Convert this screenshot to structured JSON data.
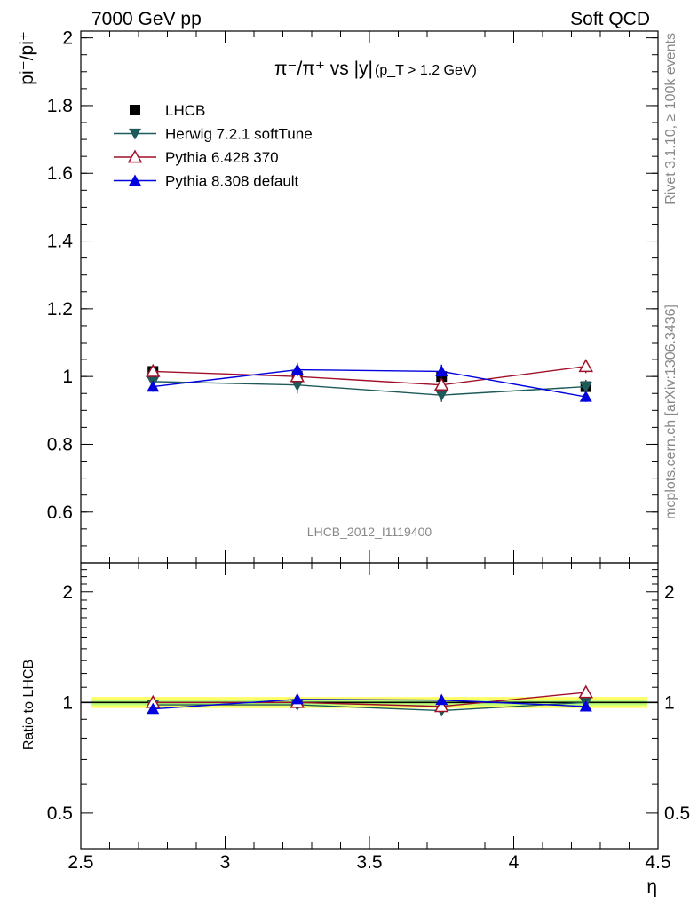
{
  "header": {
    "left": "7000 GeV pp",
    "right": "Soft QCD"
  },
  "side_labels": {
    "rivet": "Rivet 3.1.10, ≥ 100k events",
    "mcplots": "mcplots.cern.ch [arXiv:1306.3436]"
  },
  "chart_data": [
    {
      "type": "line",
      "title": {
        "main": "π⁻/π⁺ vs |y|",
        "cut": "(p_T > 1.2 GeV)"
      },
      "ylabel": "pi⁻/pi⁺",
      "xlim": [
        2.5,
        4.5
      ],
      "ylim": [
        0.45,
        2.02
      ],
      "yticks": [
        0.6,
        0.8,
        1,
        1.2,
        1.4,
        1.6,
        1.8,
        2
      ],
      "ytick_labels": [
        "0.6",
        "0.8",
        "1",
        "1.2",
        "1.4",
        "1.6",
        "1.8",
        "2"
      ],
      "watermark": "LHCB_2012_I1119400",
      "legend_position": "top-left",
      "x": [
        2.75,
        3.25,
        3.75,
        4.25
      ],
      "series": [
        {
          "name": "LHCB",
          "marker": "square-filled",
          "color": "#000000",
          "values": [
            1.015,
            1.0,
            1.0,
            0.97
          ],
          "err": [
            0.02,
            0.02,
            0.02,
            0.02
          ]
        },
        {
          "name": "Herwig 7.2.1 softTune",
          "marker": "triangle-down-filled",
          "color": "#1f5a5a",
          "values": [
            0.985,
            0.975,
            0.945,
            0.97
          ],
          "err": [
            0.018,
            0.025,
            0.02,
            0.02
          ]
        },
        {
          "name": "Pythia 6.428 370",
          "marker": "triangle-up-open",
          "color": "#a0102a",
          "values": [
            1.015,
            1.0,
            0.975,
            1.03
          ],
          "err": [
            0.015,
            0.02,
            0.02,
            0.02
          ]
        },
        {
          "name": "Pythia 8.308 default",
          "marker": "triangle-up-filled",
          "color": "#0000e0",
          "values": [
            0.97,
            1.02,
            1.015,
            0.94
          ],
          "err": [
            0.015,
            0.02,
            0.02,
            0.015
          ]
        }
      ]
    },
    {
      "type": "line",
      "ylabel": "Ratio to LHCB",
      "xlabel": "η",
      "xlim": [
        2.5,
        4.5
      ],
      "ylim": [
        0.4,
        2.4
      ],
      "yscale": "log",
      "xticks": [
        2.5,
        3,
        3.5,
        4,
        4.5
      ],
      "xtick_labels": [
        "2.5",
        "3",
        "3.5",
        "4",
        "4.5"
      ],
      "yticks": [
        0.5,
        1,
        2
      ],
      "ytick_labels": [
        "0.5",
        "1",
        "2"
      ],
      "reference_line": 1,
      "band_colors": {
        "inner": "#88ff88",
        "outer": "#ffff66"
      },
      "x": [
        2.75,
        3.25,
        3.75,
        4.25
      ],
      "series": [
        {
          "name": "Herwig 7.2.1 softTune",
          "marker": "triangle-down-filled",
          "color": "#1f5a5a",
          "values": [
            0.985,
            0.985,
            0.95,
            1.0
          ]
        },
        {
          "name": "Pythia 6.428 370",
          "marker": "triangle-up-open",
          "color": "#a0102a",
          "values": [
            1.0,
            1.0,
            0.975,
            1.065
          ]
        },
        {
          "name": "Pythia 8.308 default",
          "marker": "triangle-up-filled",
          "color": "#0000e0",
          "values": [
            0.96,
            1.02,
            1.015,
            0.975
          ]
        }
      ]
    }
  ]
}
